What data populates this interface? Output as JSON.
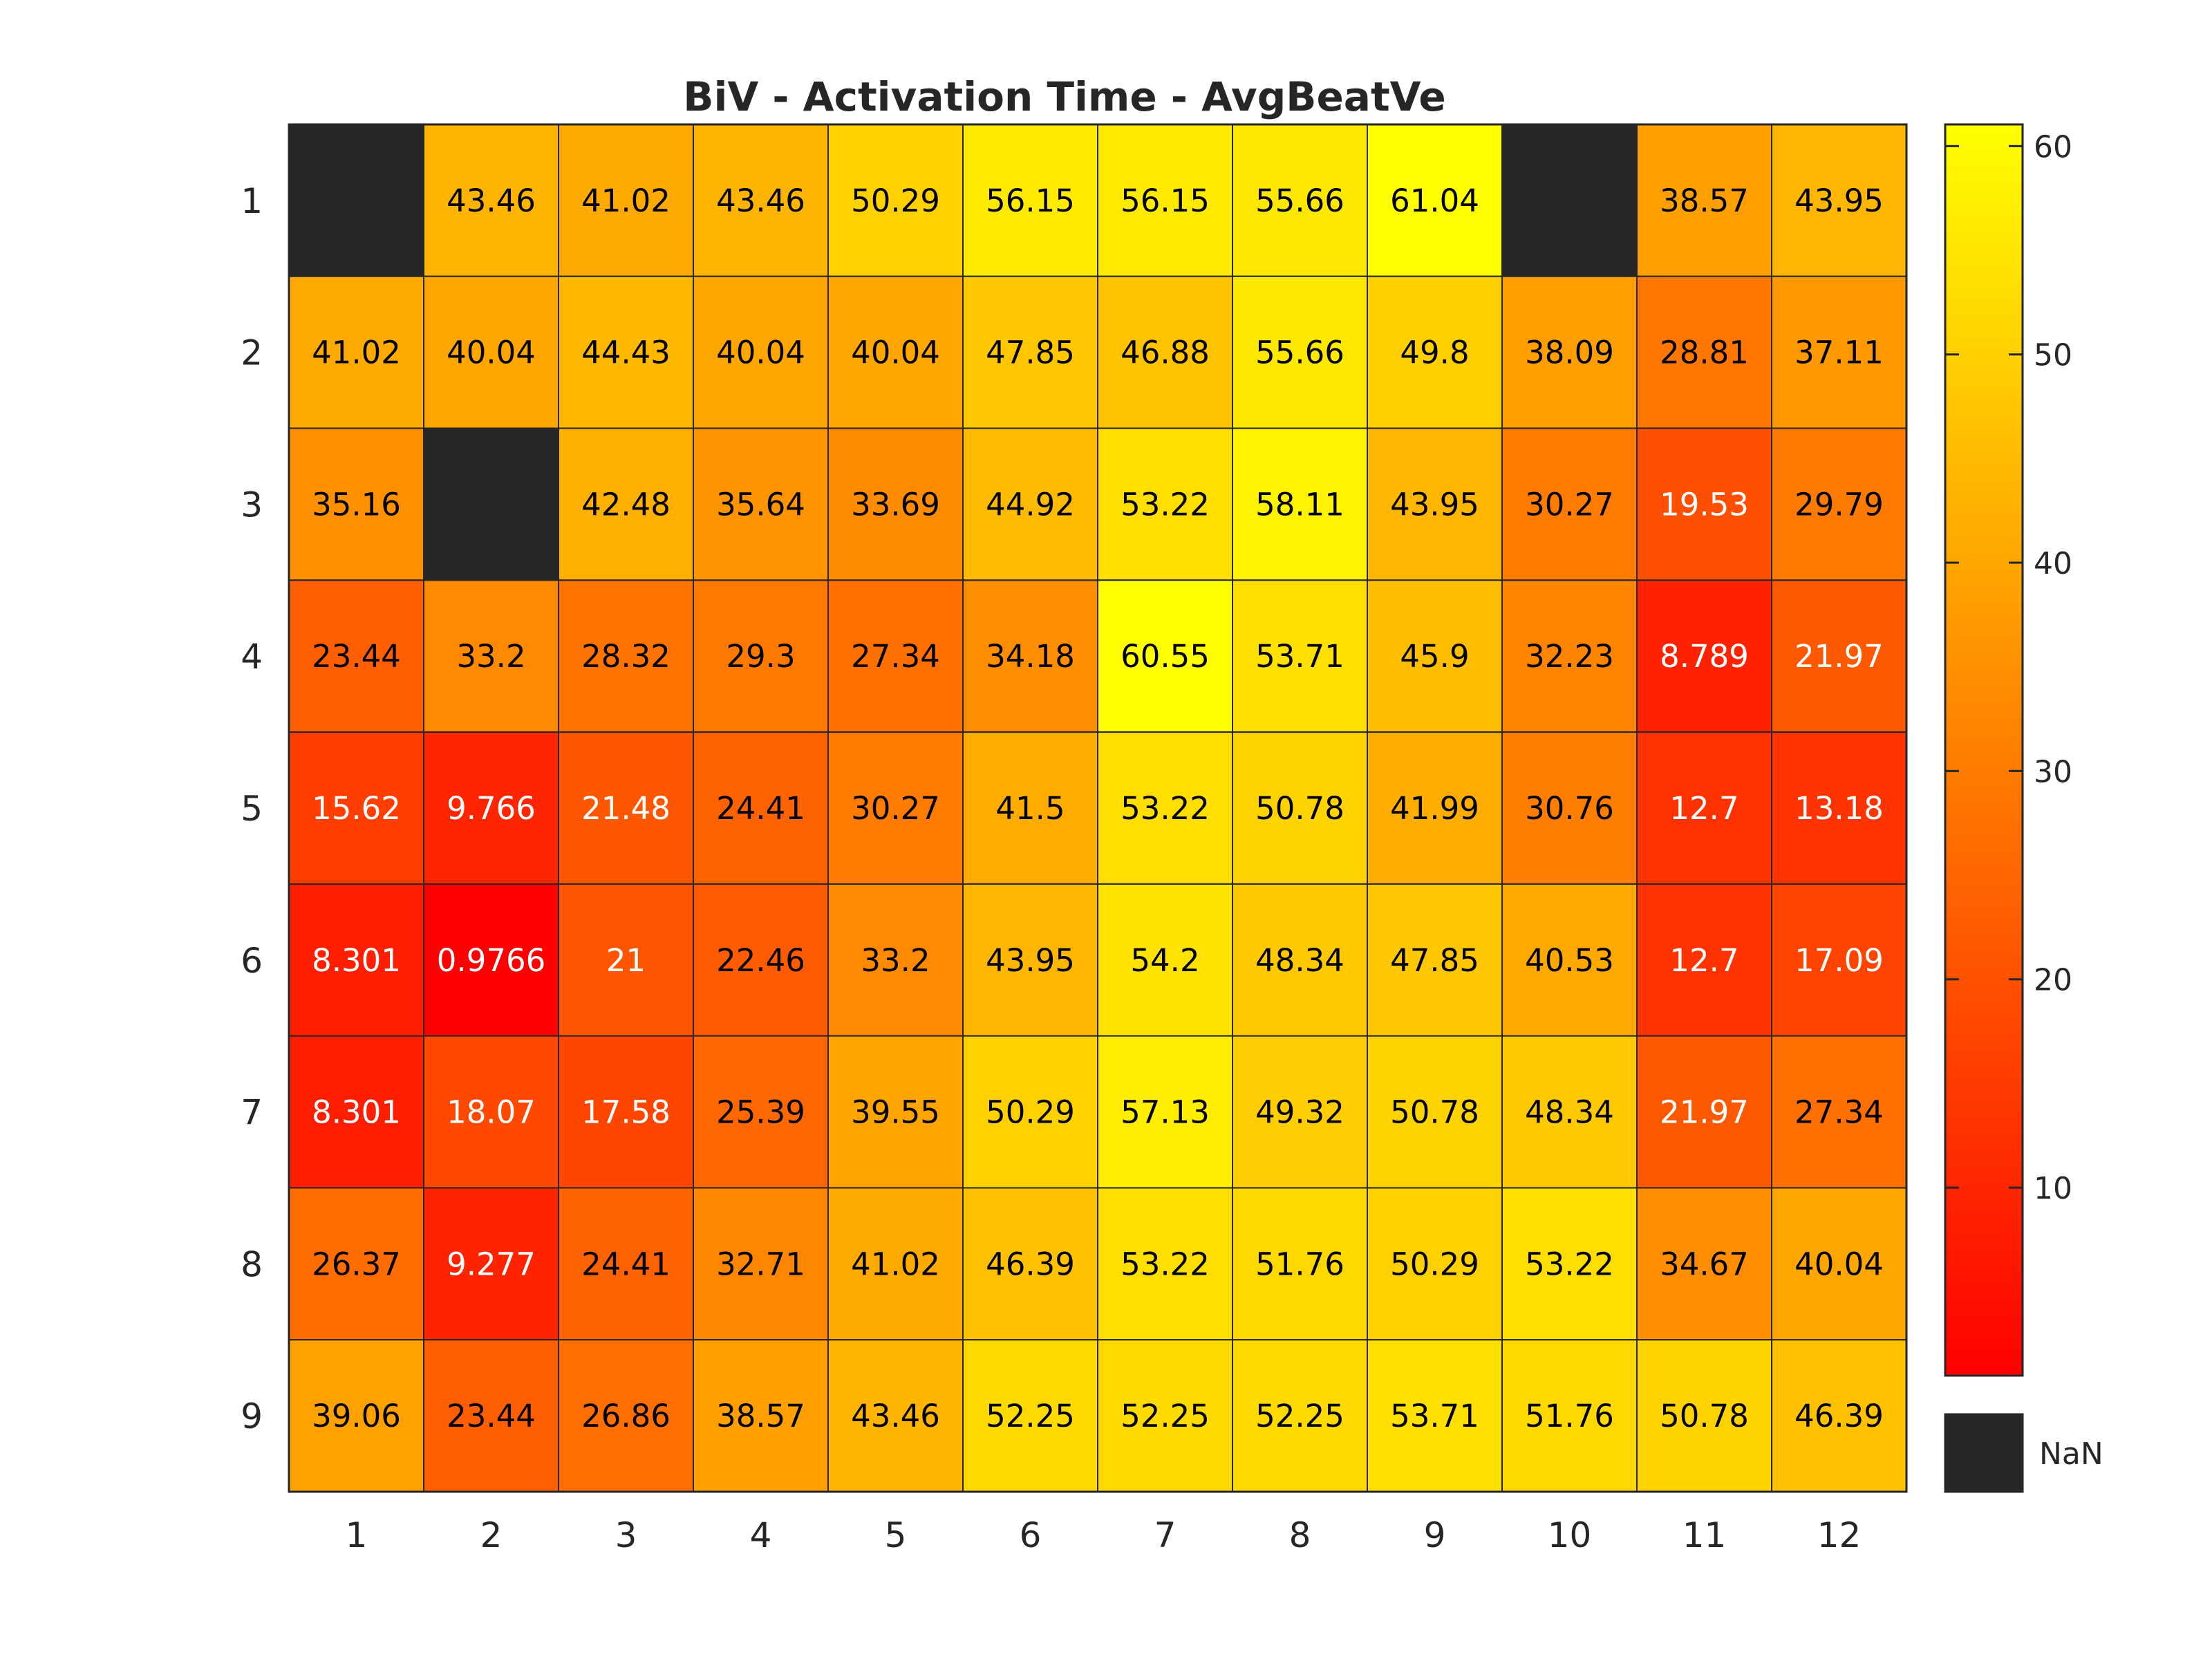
{
  "chart_data": {
    "type": "heatmap",
    "title": "BiV - Activation Time - AvgBeatVe",
    "x_categories": [
      "1",
      "2",
      "3",
      "4",
      "5",
      "6",
      "7",
      "8",
      "9",
      "10",
      "11",
      "12"
    ],
    "y_categories": [
      "1",
      "2",
      "3",
      "4",
      "5",
      "6",
      "7",
      "8",
      "9"
    ],
    "values": [
      [
        null,
        43.46,
        41.02,
        43.46,
        50.29,
        56.15,
        56.15,
        55.66,
        61.04,
        null,
        38.57,
        43.95
      ],
      [
        41.02,
        40.04,
        44.43,
        40.04,
        40.04,
        47.85,
        46.88,
        55.66,
        49.8,
        38.09,
        28.81,
        37.11
      ],
      [
        35.16,
        null,
        42.48,
        35.64,
        33.69,
        44.92,
        53.22,
        58.11,
        43.95,
        30.27,
        19.53,
        29.79
      ],
      [
        23.44,
        33.2,
        28.32,
        29.3,
        27.34,
        34.18,
        60.55,
        53.71,
        45.9,
        32.23,
        8.789,
        21.97
      ],
      [
        15.62,
        9.766,
        21.48,
        24.41,
        30.27,
        41.5,
        53.22,
        50.78,
        41.99,
        30.76,
        12.7,
        13.18
      ],
      [
        8.301,
        0.9766,
        21,
        22.46,
        33.2,
        43.95,
        54.2,
        48.34,
        47.85,
        40.53,
        12.7,
        17.09
      ],
      [
        8.301,
        18.07,
        17.58,
        25.39,
        39.55,
        50.29,
        57.13,
        49.32,
        50.78,
        48.34,
        21.97,
        27.34
      ],
      [
        26.37,
        9.277,
        24.41,
        32.71,
        41.02,
        46.39,
        53.22,
        51.76,
        50.29,
        53.22,
        34.67,
        40.04
      ],
      [
        39.06,
        23.44,
        26.86,
        38.57,
        43.46,
        52.25,
        52.25,
        52.25,
        53.71,
        51.76,
        50.78,
        46.39
      ]
    ],
    "labels": [
      [
        "",
        "43.46",
        "41.02",
        "43.46",
        "50.29",
        "56.15",
        "56.15",
        "55.66",
        "61.04",
        "",
        "38.57",
        "43.95"
      ],
      [
        "41.02",
        "40.04",
        "44.43",
        "40.04",
        "40.04",
        "47.85",
        "46.88",
        "55.66",
        "49.8",
        "38.09",
        "28.81",
        "37.11"
      ],
      [
        "35.16",
        "",
        "42.48",
        "35.64",
        "33.69",
        "44.92",
        "53.22",
        "58.11",
        "43.95",
        "30.27",
        "19.53",
        "29.79"
      ],
      [
        "23.44",
        "33.2",
        "28.32",
        "29.3",
        "27.34",
        "34.18",
        "60.55",
        "53.71",
        "45.9",
        "32.23",
        "8.789",
        "21.97"
      ],
      [
        "15.62",
        "9.766",
        "21.48",
        "24.41",
        "30.27",
        "41.5",
        "53.22",
        "50.78",
        "41.99",
        "30.76",
        "12.7",
        "13.18"
      ],
      [
        "8.301",
        "0.9766",
        "21",
        "22.46",
        "33.2",
        "43.95",
        "54.2",
        "48.34",
        "47.85",
        "40.53",
        "12.7",
        "17.09"
      ],
      [
        "8.301",
        "18.07",
        "17.58",
        "25.39",
        "39.55",
        "50.29",
        "57.13",
        "49.32",
        "50.78",
        "48.34",
        "21.97",
        "27.34"
      ],
      [
        "26.37",
        "9.277",
        "24.41",
        "32.71",
        "41.02",
        "46.39",
        "53.22",
        "51.76",
        "50.29",
        "53.22",
        "34.67",
        "40.04"
      ],
      [
        "39.06",
        "23.44",
        "26.86",
        "38.57",
        "43.46",
        "52.25",
        "52.25",
        "52.25",
        "53.71",
        "51.76",
        "50.78",
        "46.39"
      ]
    ],
    "colormap": "autumn",
    "colormap_low": "#ff0000",
    "colormap_high": "#ffff00",
    "nan_color": "#262626",
    "color_range": [
      0.9766,
      61.04
    ],
    "colorbar_ticks": [
      "10",
      "20",
      "30",
      "40",
      "50",
      "60"
    ],
    "nan_label": "NaN",
    "label_light_threshold": 22,
    "label_dark_color": "#000000",
    "label_light_color": "#ffffff",
    "grid_color": "#262626"
  }
}
